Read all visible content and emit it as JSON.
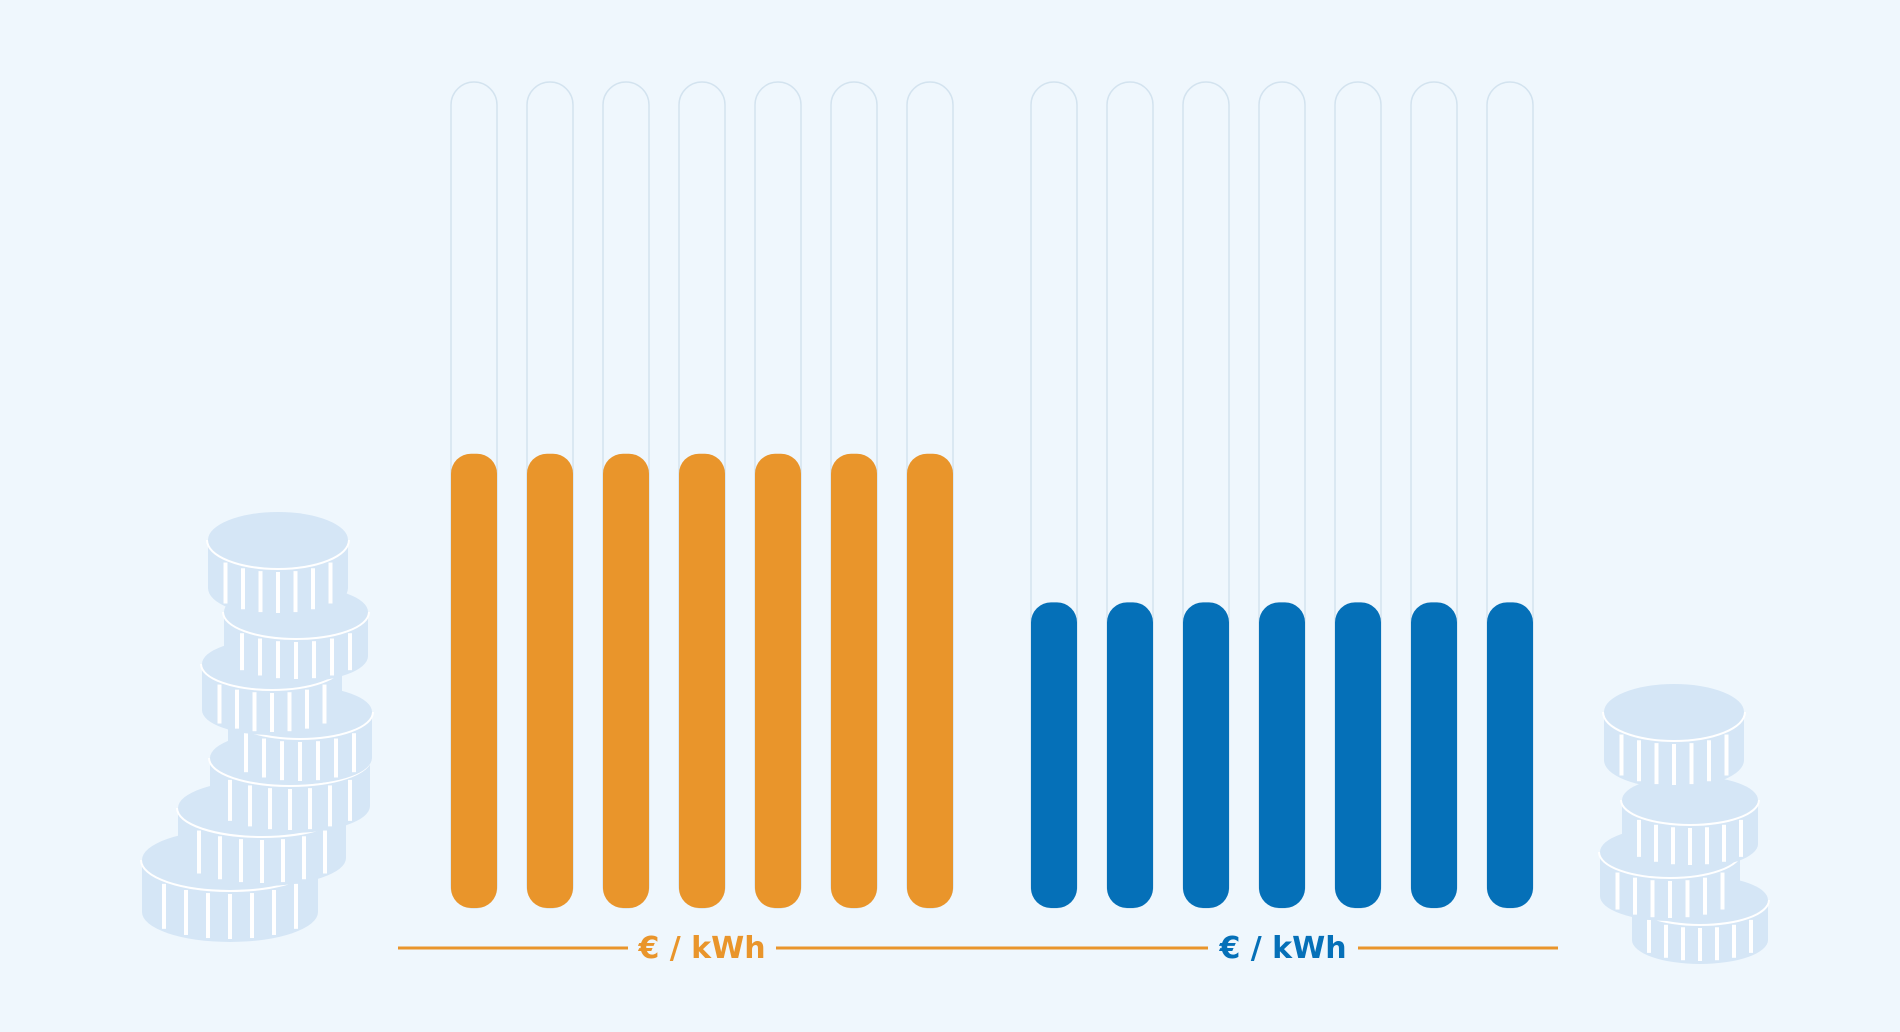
{
  "chart_data": {
    "type": "bar",
    "ylim": [
      0,
      1
    ],
    "series": [
      {
        "label": "€ / kWh",
        "color": "#e9952b",
        "values": [
          0.55,
          0.55,
          0.55,
          0.55,
          0.55,
          0.55,
          0.55
        ]
      },
      {
        "label": "€ / kWh",
        "color": "#0570b8",
        "values": [
          0.37,
          0.37,
          0.37,
          0.37,
          0.37,
          0.37,
          0.37
        ]
      }
    ],
    "grid": false,
    "legend": "bottom"
  },
  "colors": {
    "background": "#eff7fd",
    "track_outline": "#d3e3ef",
    "coin_fill": "#d5e6f6",
    "coin_stroke": "#ffffff"
  },
  "icons": [
    "coin-stack-icon",
    "coin-stack-icon"
  ]
}
